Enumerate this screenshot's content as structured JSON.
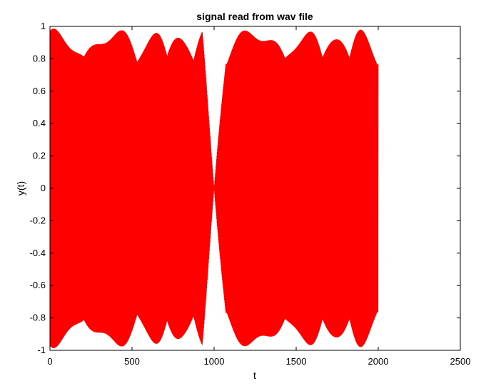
{
  "chart_data": {
    "type": "line",
    "title": "signal read from wav file",
    "xlabel": "t",
    "ylabel": "y(t)",
    "xlim": [
      0,
      2500
    ],
    "ylim": [
      -1,
      1
    ],
    "xticks": [
      0,
      500,
      1000,
      1500,
      2000,
      2500
    ],
    "yticks": [
      -1,
      -0.8,
      -0.6,
      -0.4,
      -0.2,
      0,
      0.2,
      0.4,
      0.6,
      0.8,
      1
    ],
    "grid": false,
    "series": [
      {
        "name": "y(t)",
        "color": "#ff0000",
        "description": "dense oscillating signal over t = 0 to 2000 with amplitude near 1, collapsing to 0 at t = 1000",
        "t_start": 0,
        "t_end": 2000,
        "t_zero": 1000,
        "amplitude": 1
      }
    ]
  }
}
